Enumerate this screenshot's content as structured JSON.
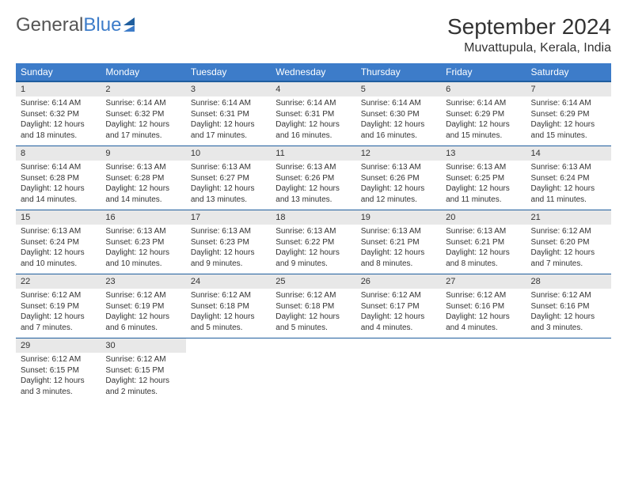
{
  "logo": {
    "part1": "General",
    "part2": "Blue"
  },
  "title": "September 2024",
  "location": "Muvattupula, Kerala, India",
  "colors": {
    "header_bg": "#3d7cc9",
    "header_border": "#1f5e9e",
    "daynum_bg": "#e8e8e8",
    "text": "#333333",
    "page_bg": "#ffffff"
  },
  "weekdays": [
    "Sunday",
    "Monday",
    "Tuesday",
    "Wednesday",
    "Thursday",
    "Friday",
    "Saturday"
  ],
  "weeks": [
    [
      {
        "n": "1",
        "sr": "Sunrise: 6:14 AM",
        "ss": "Sunset: 6:32 PM",
        "d1": "Daylight: 12 hours",
        "d2": "and 18 minutes."
      },
      {
        "n": "2",
        "sr": "Sunrise: 6:14 AM",
        "ss": "Sunset: 6:32 PM",
        "d1": "Daylight: 12 hours",
        "d2": "and 17 minutes."
      },
      {
        "n": "3",
        "sr": "Sunrise: 6:14 AM",
        "ss": "Sunset: 6:31 PM",
        "d1": "Daylight: 12 hours",
        "d2": "and 17 minutes."
      },
      {
        "n": "4",
        "sr": "Sunrise: 6:14 AM",
        "ss": "Sunset: 6:31 PM",
        "d1": "Daylight: 12 hours",
        "d2": "and 16 minutes."
      },
      {
        "n": "5",
        "sr": "Sunrise: 6:14 AM",
        "ss": "Sunset: 6:30 PM",
        "d1": "Daylight: 12 hours",
        "d2": "and 16 minutes."
      },
      {
        "n": "6",
        "sr": "Sunrise: 6:14 AM",
        "ss": "Sunset: 6:29 PM",
        "d1": "Daylight: 12 hours",
        "d2": "and 15 minutes."
      },
      {
        "n": "7",
        "sr": "Sunrise: 6:14 AM",
        "ss": "Sunset: 6:29 PM",
        "d1": "Daylight: 12 hours",
        "d2": "and 15 minutes."
      }
    ],
    [
      {
        "n": "8",
        "sr": "Sunrise: 6:14 AM",
        "ss": "Sunset: 6:28 PM",
        "d1": "Daylight: 12 hours",
        "d2": "and 14 minutes."
      },
      {
        "n": "9",
        "sr": "Sunrise: 6:13 AM",
        "ss": "Sunset: 6:28 PM",
        "d1": "Daylight: 12 hours",
        "d2": "and 14 minutes."
      },
      {
        "n": "10",
        "sr": "Sunrise: 6:13 AM",
        "ss": "Sunset: 6:27 PM",
        "d1": "Daylight: 12 hours",
        "d2": "and 13 minutes."
      },
      {
        "n": "11",
        "sr": "Sunrise: 6:13 AM",
        "ss": "Sunset: 6:26 PM",
        "d1": "Daylight: 12 hours",
        "d2": "and 13 minutes."
      },
      {
        "n": "12",
        "sr": "Sunrise: 6:13 AM",
        "ss": "Sunset: 6:26 PM",
        "d1": "Daylight: 12 hours",
        "d2": "and 12 minutes."
      },
      {
        "n": "13",
        "sr": "Sunrise: 6:13 AM",
        "ss": "Sunset: 6:25 PM",
        "d1": "Daylight: 12 hours",
        "d2": "and 11 minutes."
      },
      {
        "n": "14",
        "sr": "Sunrise: 6:13 AM",
        "ss": "Sunset: 6:24 PM",
        "d1": "Daylight: 12 hours",
        "d2": "and 11 minutes."
      }
    ],
    [
      {
        "n": "15",
        "sr": "Sunrise: 6:13 AM",
        "ss": "Sunset: 6:24 PM",
        "d1": "Daylight: 12 hours",
        "d2": "and 10 minutes."
      },
      {
        "n": "16",
        "sr": "Sunrise: 6:13 AM",
        "ss": "Sunset: 6:23 PM",
        "d1": "Daylight: 12 hours",
        "d2": "and 10 minutes."
      },
      {
        "n": "17",
        "sr": "Sunrise: 6:13 AM",
        "ss": "Sunset: 6:23 PM",
        "d1": "Daylight: 12 hours",
        "d2": "and 9 minutes."
      },
      {
        "n": "18",
        "sr": "Sunrise: 6:13 AM",
        "ss": "Sunset: 6:22 PM",
        "d1": "Daylight: 12 hours",
        "d2": "and 9 minutes."
      },
      {
        "n": "19",
        "sr": "Sunrise: 6:13 AM",
        "ss": "Sunset: 6:21 PM",
        "d1": "Daylight: 12 hours",
        "d2": "and 8 minutes."
      },
      {
        "n": "20",
        "sr": "Sunrise: 6:13 AM",
        "ss": "Sunset: 6:21 PM",
        "d1": "Daylight: 12 hours",
        "d2": "and 8 minutes."
      },
      {
        "n": "21",
        "sr": "Sunrise: 6:12 AM",
        "ss": "Sunset: 6:20 PM",
        "d1": "Daylight: 12 hours",
        "d2": "and 7 minutes."
      }
    ],
    [
      {
        "n": "22",
        "sr": "Sunrise: 6:12 AM",
        "ss": "Sunset: 6:19 PM",
        "d1": "Daylight: 12 hours",
        "d2": "and 7 minutes."
      },
      {
        "n": "23",
        "sr": "Sunrise: 6:12 AM",
        "ss": "Sunset: 6:19 PM",
        "d1": "Daylight: 12 hours",
        "d2": "and 6 minutes."
      },
      {
        "n": "24",
        "sr": "Sunrise: 6:12 AM",
        "ss": "Sunset: 6:18 PM",
        "d1": "Daylight: 12 hours",
        "d2": "and 5 minutes."
      },
      {
        "n": "25",
        "sr": "Sunrise: 6:12 AM",
        "ss": "Sunset: 6:18 PM",
        "d1": "Daylight: 12 hours",
        "d2": "and 5 minutes."
      },
      {
        "n": "26",
        "sr": "Sunrise: 6:12 AM",
        "ss": "Sunset: 6:17 PM",
        "d1": "Daylight: 12 hours",
        "d2": "and 4 minutes."
      },
      {
        "n": "27",
        "sr": "Sunrise: 6:12 AM",
        "ss": "Sunset: 6:16 PM",
        "d1": "Daylight: 12 hours",
        "d2": "and 4 minutes."
      },
      {
        "n": "28",
        "sr": "Sunrise: 6:12 AM",
        "ss": "Sunset: 6:16 PM",
        "d1": "Daylight: 12 hours",
        "d2": "and 3 minutes."
      }
    ],
    [
      {
        "n": "29",
        "sr": "Sunrise: 6:12 AM",
        "ss": "Sunset: 6:15 PM",
        "d1": "Daylight: 12 hours",
        "d2": "and 3 minutes."
      },
      {
        "n": "30",
        "sr": "Sunrise: 6:12 AM",
        "ss": "Sunset: 6:15 PM",
        "d1": "Daylight: 12 hours",
        "d2": "and 2 minutes."
      },
      null,
      null,
      null,
      null,
      null
    ]
  ]
}
